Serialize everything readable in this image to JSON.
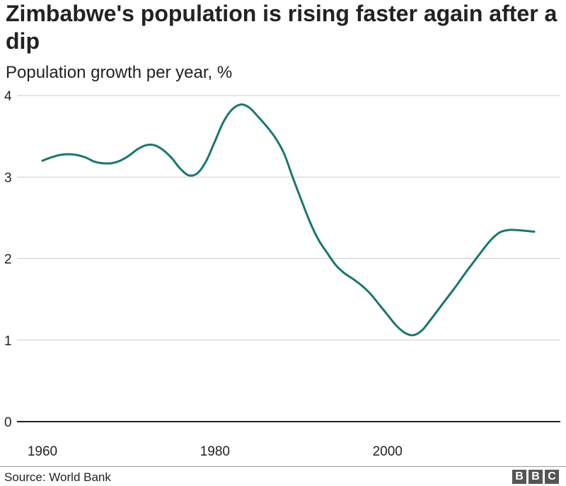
{
  "chart_data": {
    "type": "line",
    "title": "Zimbabwe's population is rising faster again after a dip",
    "subtitle": "Population growth per year, %",
    "xlabel": "",
    "ylabel": "",
    "xlim": [
      1959,
      2020
    ],
    "ylim": [
      0,
      4
    ],
    "x_ticks": [
      1960,
      1980,
      2000
    ],
    "y_ticks": [
      0,
      1,
      2,
      3,
      4
    ],
    "grid": true,
    "series": [
      {
        "color": "#1a7670",
        "x": [
          1960,
          1961,
          1962,
          1963,
          1964,
          1965,
          1966,
          1967,
          1968,
          1969,
          1970,
          1971,
          1972,
          1973,
          1974,
          1975,
          1976,
          1977,
          1978,
          1979,
          1980,
          1981,
          1982,
          1983,
          1984,
          1985,
          1986,
          1987,
          1988,
          1989,
          1990,
          1991,
          1992,
          1993,
          1994,
          1995,
          1996,
          1997,
          1998,
          1999,
          2000,
          2001,
          2002,
          2003,
          2004,
          2005,
          2006,
          2007,
          2008,
          2009,
          2010,
          2011,
          2012,
          2013,
          2014,
          2015,
          2016,
          2017
        ],
        "y": [
          3.2,
          3.24,
          3.27,
          3.28,
          3.27,
          3.24,
          3.19,
          3.17,
          3.17,
          3.2,
          3.26,
          3.34,
          3.39,
          3.39,
          3.33,
          3.23,
          3.1,
          3.02,
          3.05,
          3.2,
          3.44,
          3.68,
          3.83,
          3.89,
          3.85,
          3.74,
          3.62,
          3.48,
          3.29,
          3.0,
          2.72,
          2.45,
          2.23,
          2.07,
          1.92,
          1.82,
          1.75,
          1.67,
          1.57,
          1.44,
          1.31,
          1.18,
          1.09,
          1.06,
          1.12,
          1.25,
          1.39,
          1.53,
          1.67,
          1.82,
          1.96,
          2.1,
          2.23,
          2.32,
          2.35,
          2.35,
          2.34,
          2.33
        ]
      }
    ]
  },
  "footer": {
    "source": "Source: World Bank",
    "logo_letters": [
      "B",
      "B",
      "C"
    ]
  },
  "colors": {
    "line": "#1a7670",
    "grid": "#cccccc",
    "baseline": "#222222"
  }
}
